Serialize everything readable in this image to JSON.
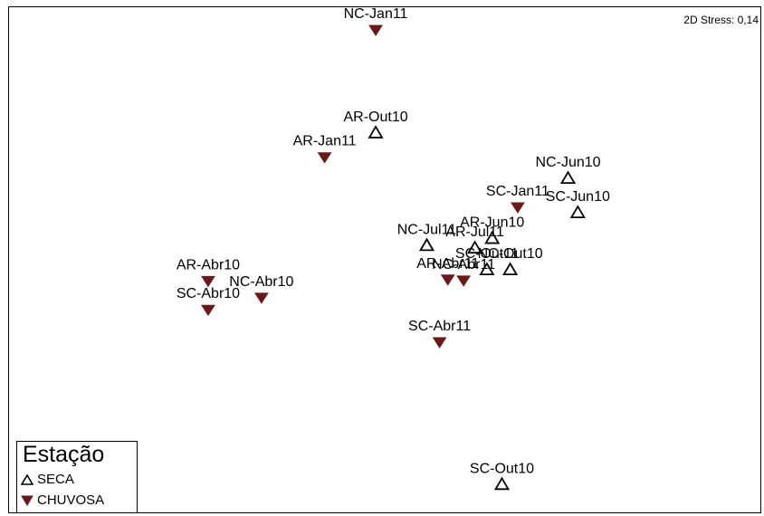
{
  "chart_data": {
    "type": "scatter",
    "title": "",
    "stress_text": "2D Stress: 0,14",
    "xlim": [
      0,
      1000
    ],
    "ylim": [
      0,
      1000
    ],
    "grid": false,
    "legend_position": "bottom-left",
    "series": [
      {
        "name": "SECA",
        "marker": "triangle-open",
        "color": "#000000",
        "points": [
          {
            "label": "AR-Out10",
            "x": 488,
            "y": 751
          },
          {
            "label": "NC-Jun10",
            "x": 744,
            "y": 661
          },
          {
            "label": "SC-Jun10",
            "x": 757,
            "y": 593
          },
          {
            "label": "NC-Jul11",
            "x": 556,
            "y": 528
          },
          {
            "label": "AR-Jun10",
            "x": 643,
            "y": 542
          },
          {
            "label": "AR-Jul11",
            "x": 620,
            "y": 523
          },
          {
            "label": "SC-Out11",
            "x": 636,
            "y": 480
          },
          {
            "label": "NC-Out10",
            "x": 667,
            "y": 480
          },
          {
            "label": "SC-Out10",
            "x": 656,
            "y": 55
          }
        ]
      },
      {
        "name": "CHUVOSA",
        "marker": "triangle-down-filled",
        "color": "#6b1a1a",
        "points": [
          {
            "label": "NC-Jan11",
            "x": 488,
            "y": 955
          },
          {
            "label": "AR-Jan11",
            "x": 420,
            "y": 703
          },
          {
            "label": "SC-Jan11",
            "x": 677,
            "y": 604
          },
          {
            "label": "AR-Abr11",
            "x": 584,
            "y": 461
          },
          {
            "label": "NC-Abr11",
            "x": 605,
            "y": 459
          },
          {
            "label": "AR-Abr10",
            "x": 265,
            "y": 458
          },
          {
            "label": "NC-Abr10",
            "x": 336,
            "y": 425
          },
          {
            "label": "SC-Abr10",
            "x": 265,
            "y": 401
          },
          {
            "label": "SC-Abr11",
            "x": 573,
            "y": 337
          }
        ]
      }
    ]
  },
  "legend": {
    "title": "Estação",
    "items": [
      {
        "label": "SECA"
      },
      {
        "label": "CHUVOSA"
      }
    ]
  }
}
